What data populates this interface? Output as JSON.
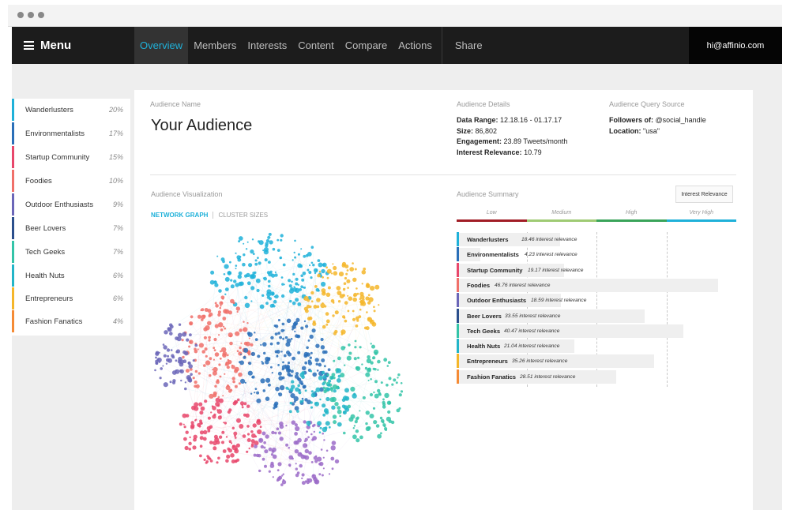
{
  "nav": {
    "menu_label": "Menu",
    "tabs": [
      "Overview",
      "Members",
      "Interests",
      "Content",
      "Compare",
      "Actions"
    ],
    "active_tab": "Overview",
    "share_label": "Share",
    "user_email": "hi@affinio.com"
  },
  "sidebar": {
    "items": [
      {
        "label": "Wanderlusters",
        "pct": "20%",
        "color": "#1fb1d9"
      },
      {
        "label": "Environmentalists",
        "pct": "17%",
        "color": "#2a6fb8"
      },
      {
        "label": "Startup Community",
        "pct": "15%",
        "color": "#e8476b"
      },
      {
        "label": "Foodies",
        "pct": "10%",
        "color": "#f0706a"
      },
      {
        "label": "Outdoor Enthusiasts",
        "pct": "9%",
        "color": "#6b66b8"
      },
      {
        "label": "Beer Lovers",
        "pct": "7%",
        "color": "#2b4f8c"
      },
      {
        "label": "Tech Geeks",
        "pct": "7%",
        "color": "#34c4a8"
      },
      {
        "label": "Health Nuts",
        "pct": "6%",
        "color": "#22b5c8"
      },
      {
        "label": "Entrepreneurs",
        "pct": "6%",
        "color": "#f5b62a"
      },
      {
        "label": "Fashion Fanatics",
        "pct": "4%",
        "color": "#f58b35"
      }
    ]
  },
  "audience": {
    "name_label": "Audience Name",
    "name": "Your Audience",
    "details_label": "Audience Details",
    "date_range_key": "Data Range:",
    "date_range": "12.18.16 - 01.17.17",
    "size_key": "Size:",
    "size": "86,802",
    "engagement_key": "Engagement:",
    "engagement": "23.89 Tweets/month",
    "relevance_key": "Interest Relevance:",
    "relevance": "10.79",
    "query_label": "Audience Query Source",
    "followers_key": "Followers of:",
    "followers": "@social_handle",
    "location_key": "Location:",
    "location": "\"usa\""
  },
  "visualization": {
    "label": "Audience Visualization",
    "tab_network": "NETWORK GRAPH",
    "tab_cluster": "CLUSTER SIZES",
    "active_tab": "NETWORK GRAPH"
  },
  "summary": {
    "label": "Audience Summary",
    "button_label": "Interest Relevance",
    "scale": [
      {
        "label": "Low",
        "color": "#a11d26"
      },
      {
        "label": "Medium",
        "color": "#9fcb74"
      },
      {
        "label": "High",
        "color": "#3aa45a"
      },
      {
        "label": "Very High",
        "color": "#1fb1d9"
      }
    ],
    "max_value": 50,
    "rows": [
      {
        "name": "Wanderlusters",
        "value": 18.46,
        "text": "18.46 interest relevance",
        "color": "#1fb1d9"
      },
      {
        "name": "Environmentalists",
        "value": 4.23,
        "text": "4.23 interest relevance",
        "color": "#2a6fb8"
      },
      {
        "name": "Startup Community",
        "value": 19.17,
        "text": "19.17 interest relevance",
        "color": "#e8476b"
      },
      {
        "name": "Foodies",
        "value": 46.76,
        "text": "46.76 interest relevance",
        "color": "#f0706a"
      },
      {
        "name": "Outdoor Enthusiasts",
        "value": 18.59,
        "text": "18.59 interest relevance",
        "color": "#6b66b8"
      },
      {
        "name": "Beer Lovers",
        "value": 33.55,
        "text": "33.55 interest relevance",
        "color": "#2b4f8c"
      },
      {
        "name": "Tech Geeks",
        "value": 40.47,
        "text": "40.47 interest relevance",
        "color": "#34c4a8"
      },
      {
        "name": "Health Nuts",
        "value": 21.04,
        "text": "21.04 interest relevance",
        "color": "#22b5c8"
      },
      {
        "name": "Entrepreneurs",
        "value": 35.26,
        "text": "35.26 interest relevance",
        "color": "#f5b62a"
      },
      {
        "name": "Fashion Fanatics",
        "value": 28.51,
        "text": "28.51 interest relevance",
        "color": "#f58b35"
      }
    ]
  }
}
